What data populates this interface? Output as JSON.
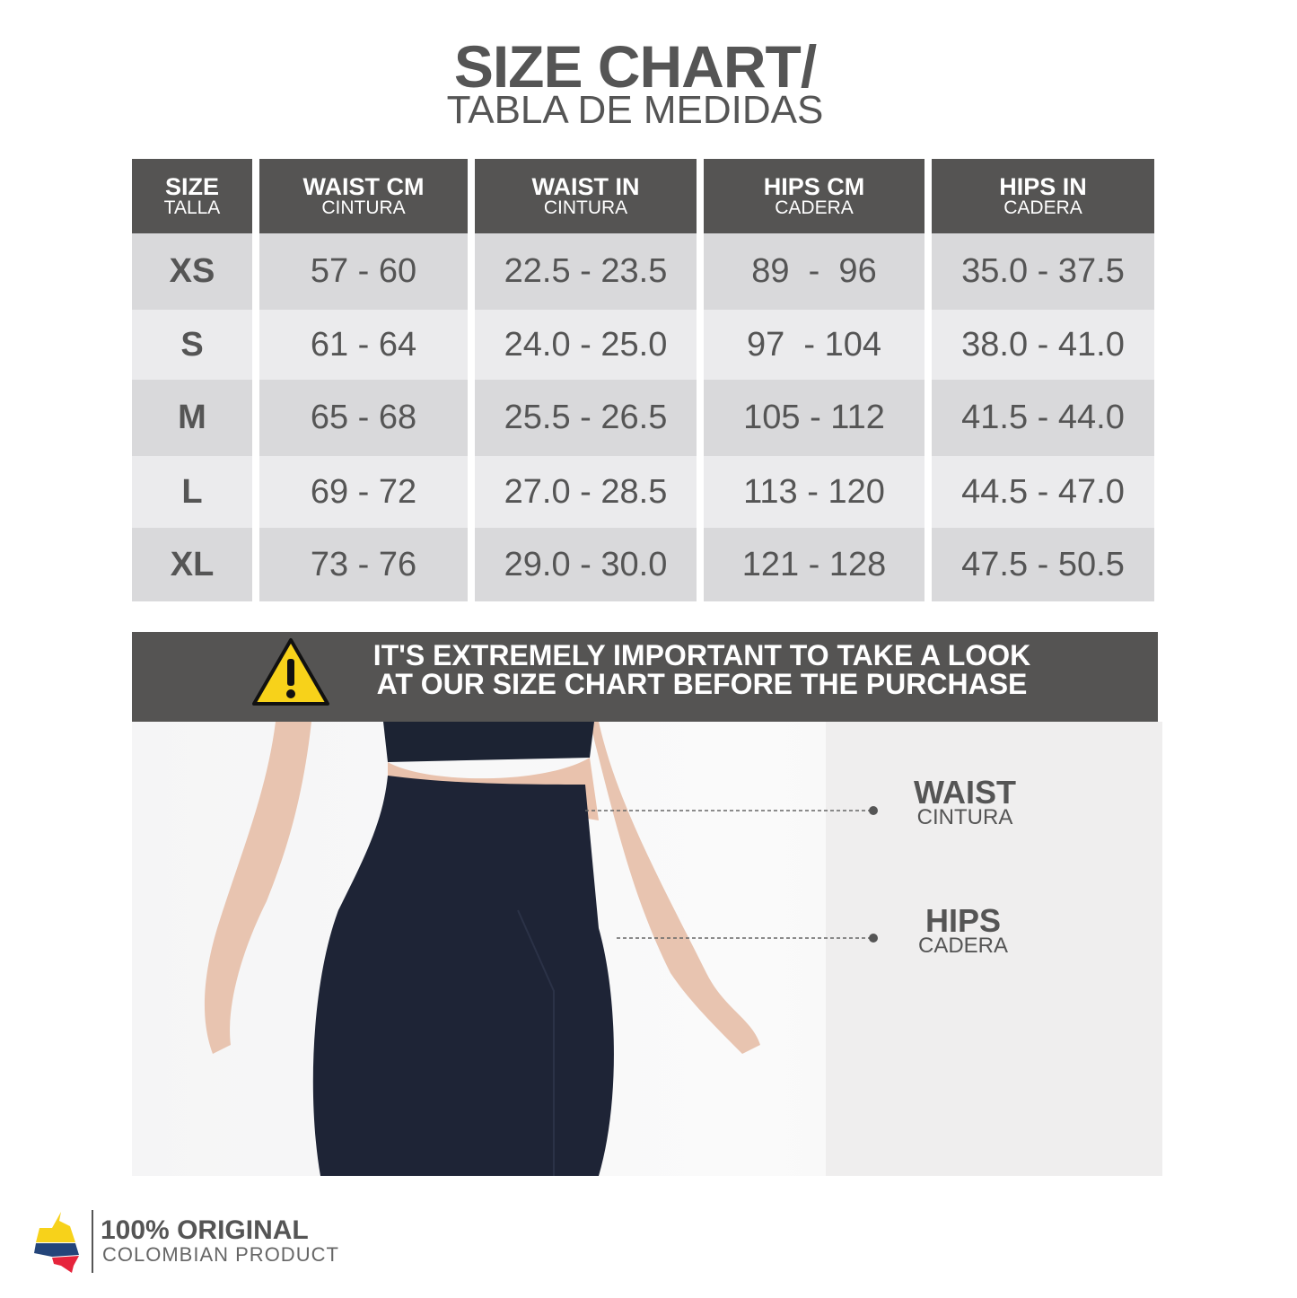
{
  "title": {
    "line1": "SIZE CHART/",
    "line2": "TABLA DE MEDIDAS"
  },
  "table": {
    "headers": [
      {
        "en": "SIZE",
        "es": "TALLA"
      },
      {
        "en": "WAIST CM",
        "es": "CINTURA"
      },
      {
        "en": "WAIST IN",
        "es": "CINTURA"
      },
      {
        "en": "HIPS CM",
        "es": "CADERA"
      },
      {
        "en": "HIPS IN",
        "es": "CADERA"
      }
    ],
    "rows": [
      [
        "XS",
        "57 - 60",
        "22.5 - 23.5",
        "89  -  96",
        "35.0 - 37.5"
      ],
      [
        "S",
        "61 - 64",
        "24.0 - 25.0",
        "97  - 104",
        "38.0 - 41.0"
      ],
      [
        "M",
        "65 - 68",
        "25.5 - 26.5",
        "105 - 112",
        "41.5 - 44.0"
      ],
      [
        "L",
        "69 - 72",
        "27.0 - 28.5",
        "113 - 120",
        "44.5 - 47.0"
      ],
      [
        "XL",
        "73 - 76",
        "29.0 - 30.0",
        "121 - 128",
        "47.5 - 50.5"
      ]
    ]
  },
  "warning": {
    "icon": "warning-triangle-icon",
    "line1": "IT'S EXTREMELY IMPORTANT TO TAKE A LOOK",
    "line2": "AT OUR SIZE CHART BEFORE THE PURCHASE"
  },
  "measure": {
    "waist": {
      "en": "WAIST",
      "es": "CINTURA"
    },
    "hips": {
      "en": "HIPS",
      "es": "CADERA"
    }
  },
  "footer": {
    "line1": "100% ORIGINAL",
    "line2": "COLOMBIAN PRODUCT",
    "flag_colors": [
      "#f7d21a",
      "#24457a",
      "#e6243c"
    ]
  }
}
